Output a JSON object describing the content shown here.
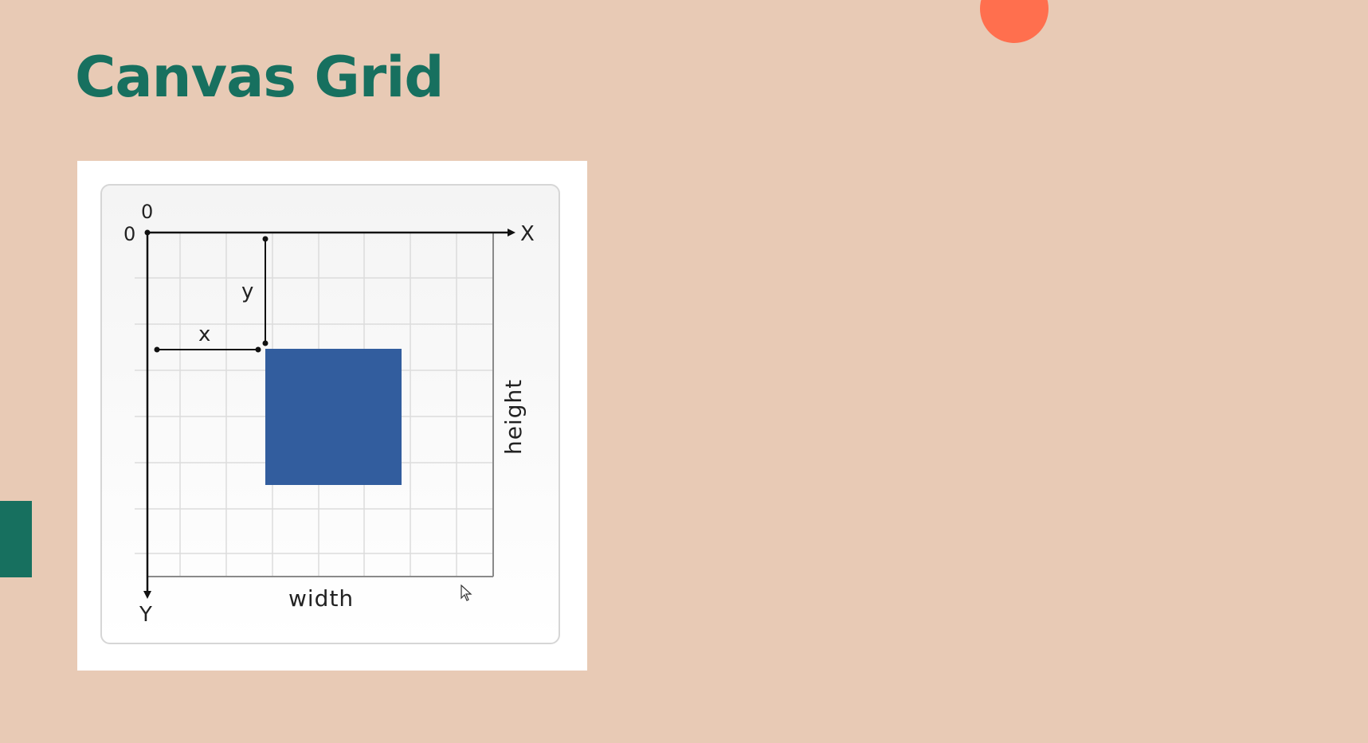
{
  "slide": {
    "title": "Canvas Grid"
  },
  "figure": {
    "origin_x_label": "0",
    "origin_y_label": "0",
    "x_axis_label": "X",
    "y_axis_label": "Y",
    "x_offset_label": "x",
    "y_offset_label": "y",
    "width_label": "width",
    "height_label": "height"
  },
  "colors": {
    "background": "#e8cab5",
    "title": "#17705f",
    "accent_circle": "#ff6f4e",
    "accent_bar": "#17705f",
    "rectangle": "#325d9e"
  },
  "icons": {
    "pointer": "mouse-pointer-icon"
  }
}
